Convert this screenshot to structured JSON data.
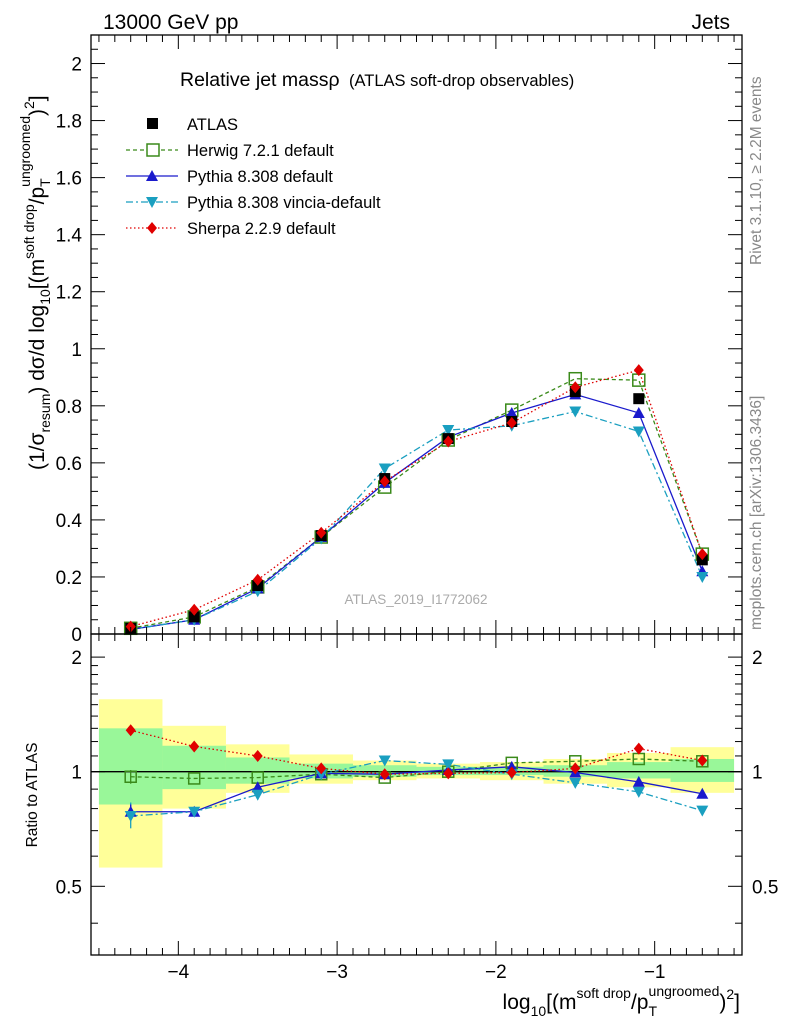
{
  "header": {
    "energy_label": "13000 GeV pp",
    "category_label": "Jets"
  },
  "side_labels": {
    "rivet": "Rivet 3.1.10, ≥ 2.2M events",
    "mcplots": "mcplots.cern.ch [arXiv:1306.3436]"
  },
  "watermark": "ATLAS_2019_I1772062",
  "colors": {
    "atlas": "#000000",
    "herwig": "#3a8a1a",
    "pythia": "#1a1acc",
    "vincia": "#1a9fc0",
    "sherpa": "#e00000",
    "band_inner": "#99f799",
    "band_outer": "#ffff99"
  },
  "chart_data": [
    {
      "type": "line",
      "title": "Relative jet mass",
      "title_symbol": "ρ",
      "subtitle": "(ATLAS soft-drop observables)",
      "ylabel": "(1/σresum) dσ/d log10[(m soft drop/pT ungroomed)2]",
      "ylabel_parts": {
        "p1": "(1/σ",
        "s1": "resum",
        "p2": ") dσ/d log",
        "s2": "10",
        "p3": "[(m",
        "sup1": "soft drop",
        "p4": "/p",
        "s3": "T",
        "sup2": "ungroomed",
        "p5": ")",
        "sup3": "2",
        "p6": "]"
      },
      "xlim": [
        -4.55,
        -0.45
      ],
      "ylim": [
        0,
        2.1
      ],
      "yticks": [
        0,
        0.2,
        0.4,
        0.6,
        0.8,
        1,
        1.2,
        1.4,
        1.6,
        1.8,
        2
      ],
      "ytick_labels": [
        "0",
        "0.2",
        "0.4",
        "0.6",
        "0.8",
        "1",
        "1.2",
        "1.4",
        "1.6",
        "1.8",
        "2"
      ],
      "x": [
        -4.3,
        -3.9,
        -3.5,
        -3.1,
        -2.7,
        -2.3,
        -1.9,
        -1.5,
        -1.1,
        -0.7
      ],
      "series": [
        {
          "name": "ATLAS",
          "key": "atlas",
          "values": [
            0.02,
            0.06,
            0.17,
            0.345,
            0.545,
            0.685,
            0.745,
            0.85,
            0.825,
            0.26
          ]
        },
        {
          "name": "Herwig 7.2.1 default",
          "key": "herwig",
          "values": [
            0.02,
            0.06,
            0.165,
            0.34,
            0.515,
            0.68,
            0.785,
            0.895,
            0.89,
            0.28
          ]
        },
        {
          "name": "Pythia 8.308 default",
          "key": "pythia",
          "values": [
            0.016,
            0.05,
            0.16,
            0.34,
            0.53,
            0.69,
            0.775,
            0.84,
            0.775,
            0.22
          ]
        },
        {
          "name": "Pythia 8.308 vincia-default",
          "key": "vincia",
          "values": [
            0.016,
            0.05,
            0.15,
            0.335,
            0.58,
            0.715,
            0.73,
            0.78,
            0.71,
            0.2
          ]
        },
        {
          "name": "Sherpa 2.2.9 default",
          "key": "sherpa",
          "values": [
            0.026,
            0.085,
            0.19,
            0.355,
            0.535,
            0.675,
            0.74,
            0.865,
            0.925,
            0.28
          ]
        }
      ]
    },
    {
      "type": "line",
      "ylabel": "Ratio to ATLAS",
      "xlabel": "log10[(m soft drop/pT ungroomed)2]",
      "xlabel_parts": {
        "p1": "log",
        "s1": "10",
        "p2": "[(m",
        "sup1": "soft drop",
        "p3": "/p",
        "s2": "T",
        "sup2": "ungroomed",
        "p4": ")",
        "sup3": "2",
        "p5": "]"
      },
      "xlim": [
        -4.55,
        -0.45
      ],
      "ylim": [
        0.33,
        2.3
      ],
      "yscale": "log",
      "yticks": [
        0.5,
        1,
        2
      ],
      "ytick_labels": [
        "0.5",
        "1",
        "2"
      ],
      "xticks": [
        -4,
        -3,
        -2,
        -1
      ],
      "xtick_labels": [
        "−4",
        "−3",
        "−2",
        "−1"
      ],
      "bin_edges": [
        -4.5,
        -4.1,
        -3.7,
        -3.3,
        -2.9,
        -2.5,
        -2.1,
        -1.7,
        -1.3,
        -0.9,
        -0.5
      ],
      "band_inner": [
        [
          0.82,
          1.3
        ],
        [
          0.9,
          1.17
        ],
        [
          0.93,
          1.09
        ],
        [
          0.96,
          1.05
        ],
        [
          0.97,
          1.04
        ],
        [
          0.98,
          1.03
        ],
        [
          0.98,
          1.03
        ],
        [
          0.97,
          1.04
        ],
        [
          0.96,
          1.06
        ],
        [
          0.94,
          1.08
        ]
      ],
      "band_outer": [
        [
          0.56,
          1.55
        ],
        [
          0.8,
          1.32
        ],
        [
          0.88,
          1.18
        ],
        [
          0.93,
          1.11
        ],
        [
          0.95,
          1.07
        ],
        [
          0.96,
          1.05
        ],
        [
          0.95,
          1.06
        ],
        [
          0.93,
          1.08
        ],
        [
          0.91,
          1.12
        ],
        [
          0.88,
          1.16
        ]
      ],
      "x": [
        -4.3,
        -3.9,
        -3.5,
        -3.1,
        -2.7,
        -2.3,
        -1.9,
        -1.5,
        -1.1,
        -0.7
      ],
      "series": [
        {
          "name": "Herwig 7.2.1 default",
          "key": "herwig",
          "values": [
            0.97,
            0.96,
            0.965,
            0.985,
            0.965,
            1.0,
            1.055,
            1.065,
            1.08,
            1.065
          ]
        },
        {
          "name": "Pythia 8.308 default",
          "key": "pythia",
          "values": [
            0.785,
            0.785,
            0.91,
            0.99,
            0.985,
            1.01,
            1.03,
            0.995,
            0.94,
            0.875
          ]
        },
        {
          "name": "Pythia 8.308 vincia-default",
          "key": "vincia",
          "values": [
            0.765,
            0.785,
            0.87,
            0.985,
            1.07,
            1.045,
            0.985,
            0.935,
            0.885,
            0.79
          ]
        },
        {
          "name": "Sherpa 2.2.9 default",
          "key": "sherpa",
          "values": [
            1.285,
            1.165,
            1.1,
            1.02,
            0.985,
            0.99,
            0.995,
            1.02,
            1.15,
            1.07
          ]
        }
      ]
    }
  ]
}
